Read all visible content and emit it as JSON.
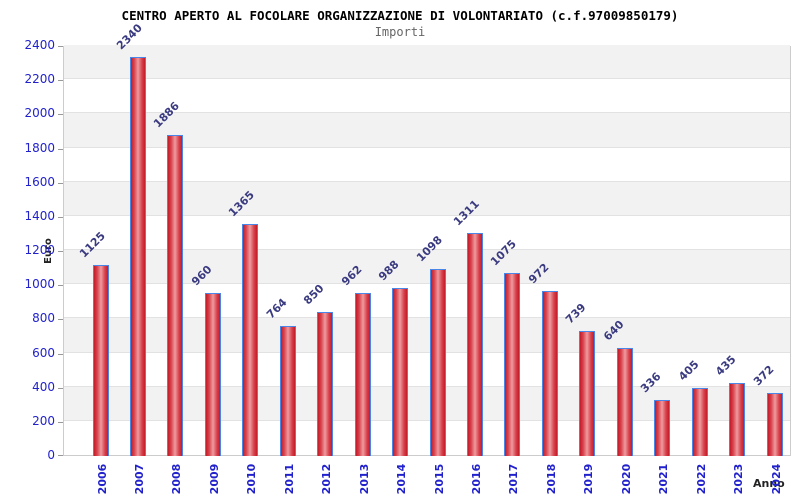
{
  "chart_data": {
    "type": "bar",
    "title": "CENTRO APERTO AL FOCOLARE ORGANIZZAZIONE DI VOLONTARIATO (c.f.97009850179)",
    "subtitle": "Importi",
    "xlabel": "Anno",
    "ylabel": "Euro",
    "categories": [
      "2006",
      "2007",
      "2008",
      "2009",
      "2010",
      "2011",
      "2012",
      "2013",
      "2014",
      "2015",
      "2016",
      "2017",
      "2018",
      "2019",
      "2020",
      "2021",
      "2022",
      "2023",
      "2024"
    ],
    "values": [
      1125,
      2340,
      1886,
      960,
      1365,
      764,
      850,
      962,
      988,
      1098,
      1311,
      1075,
      972,
      739,
      640,
      336,
      405,
      435,
      372
    ],
    "ylim": [
      0,
      2400
    ],
    "ytick_step": 200,
    "grid": "horizontal alternating bands, gray above even ticks",
    "legend_position": "none",
    "value_labels": "rotated 45deg above each bar",
    "xtick_labels": "rotated 90deg below axis",
    "colors": {
      "bar_edge": "#c41b28",
      "bar_center": "#ef9ba0",
      "bar_border": "#4a86e8",
      "tick_label": "#2222cc",
      "value_label": "#3a3a80",
      "band": "#f2f2f2",
      "gridline": "#e2e2e2",
      "plot_border": "#cccccc",
      "title": "#000000",
      "subtitle": "#666666",
      "axis_title": "#222222"
    }
  }
}
